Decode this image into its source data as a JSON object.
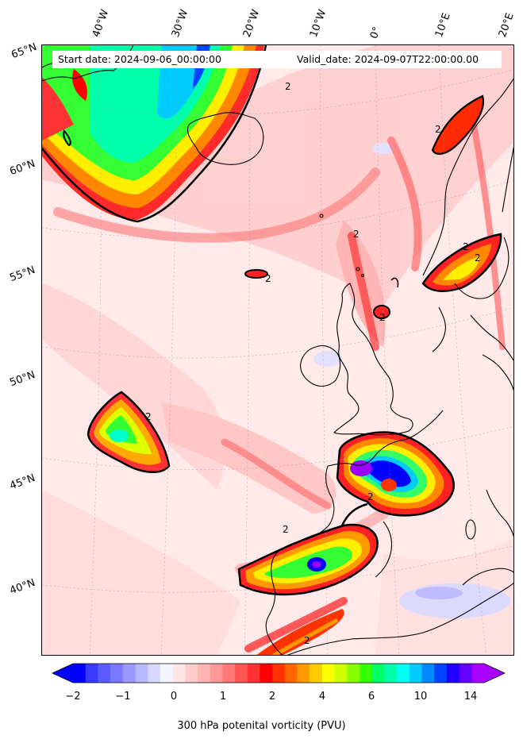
{
  "header": {
    "start_label": "Start date: 2024-09-06_00:00:00",
    "valid_label": "Valid_date: 2024-09-07T22:00:00.00"
  },
  "longitude_labels": [
    "40°W",
    "30°W",
    "20°W",
    "10°W",
    "0°",
    "10°E",
    "20°E"
  ],
  "latitude_labels": [
    "65°N",
    "60°N",
    "55°N",
    "50°N",
    "45°N",
    "40°N"
  ],
  "colorbar": {
    "title": "300 hPa potenital vorticity (PVU)",
    "tick_labels": [
      "−2",
      "−1",
      "0",
      "1",
      "2",
      "4",
      "6",
      "10",
      "14"
    ],
    "colors": [
      "#0000ff",
      "#3a3aff",
      "#5b5bff",
      "#7a7aff",
      "#9999ff",
      "#b8b8ff",
      "#d8d8ff",
      "#f4f4ff",
      "#ffe6e6",
      "#ffcccc",
      "#ffb3b3",
      "#ff9999",
      "#ff7777",
      "#ff5555",
      "#ff3333",
      "#ff0000",
      "#ff3300",
      "#ff6600",
      "#ff9900",
      "#ffcc00",
      "#ffff00",
      "#ccff00",
      "#88ff00",
      "#33ff00",
      "#00ff66",
      "#00ffaa",
      "#00ffee",
      "#00ccff",
      "#0088ff",
      "#0044ff",
      "#2200ff",
      "#6600ff",
      "#aa00ff"
    ]
  },
  "contour_labels": [
    "2",
    "2",
    "2",
    "2",
    "2",
    "2",
    "2",
    "2",
    "2",
    "2",
    "2"
  ],
  "palette": {
    "background": "#ffe9e9",
    "pink": "#ffb8b8",
    "red": "#ff3333",
    "orange": "#ff8800",
    "yellow": "#ffee00",
    "green": "#33ff33",
    "cyan": "#00ffcc",
    "blue": "#0000ff",
    "purple": "#9900ff",
    "coast": "#000000"
  }
}
